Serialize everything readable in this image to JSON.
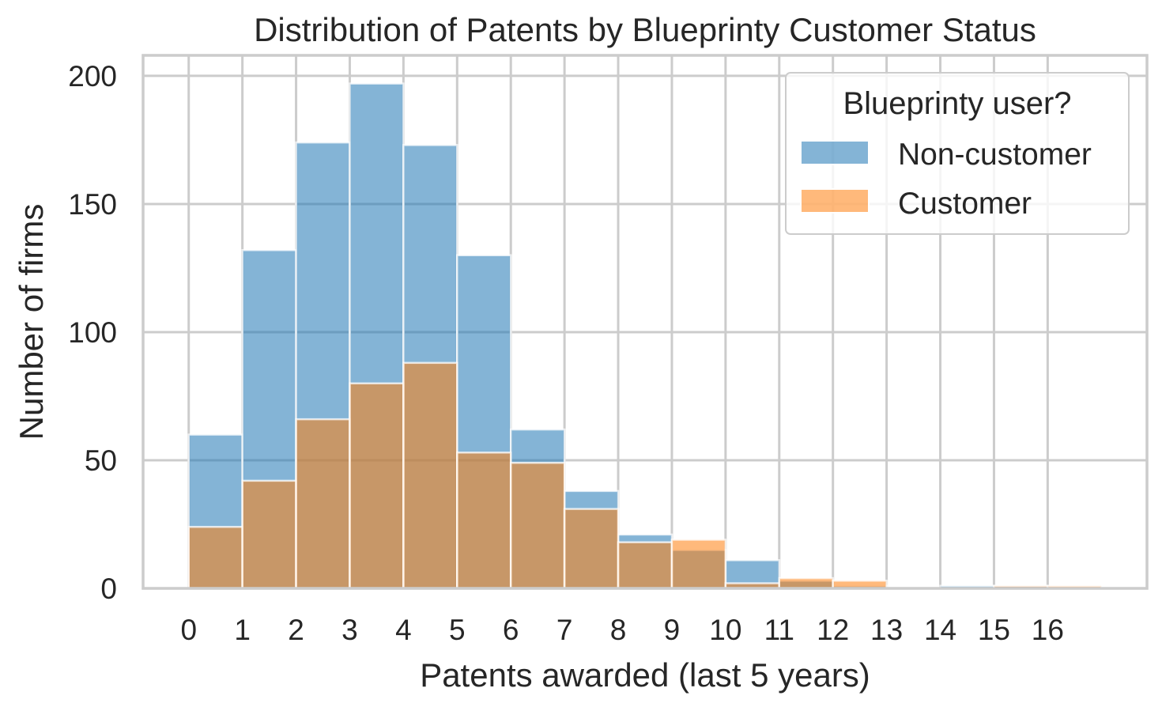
{
  "chart_data": {
    "type": "bar",
    "title": "Distribution of Patents by Blueprinty Customer Status",
    "xlabel": "Patents awarded (last 5 years)",
    "ylabel": "Number of firms",
    "x_ticks": [
      "0",
      "1",
      "2",
      "3",
      "4",
      "5",
      "6",
      "7",
      "8",
      "9",
      "10",
      "11",
      "12",
      "13",
      "14",
      "15",
      "16"
    ],
    "bin_edges": [
      0,
      1,
      2,
      3,
      4,
      5,
      6,
      7,
      8,
      9,
      10,
      11,
      12,
      13,
      14,
      15,
      16,
      17
    ],
    "xlim": [
      -0.85,
      17.85
    ],
    "y_ticks": [
      0,
      50,
      100,
      150,
      200
    ],
    "ylim": [
      0,
      208
    ],
    "grid": true,
    "legend": {
      "title": "Blueprinty user?",
      "placement": "top-right"
    },
    "series": [
      {
        "name": "Non-customer",
        "color": "#1f77b4",
        "values": [
          60,
          132,
          174,
          197,
          173,
          130,
          62,
          38,
          21,
          15,
          11,
          3,
          1,
          0,
          1,
          1,
          0
        ]
      },
      {
        "name": "Customer",
        "color": "#ff7f0e",
        "values": [
          24,
          42,
          66,
          80,
          88,
          53,
          49,
          31,
          18,
          19,
          2,
          4,
          3,
          0,
          0,
          1,
          1
        ]
      }
    ]
  }
}
